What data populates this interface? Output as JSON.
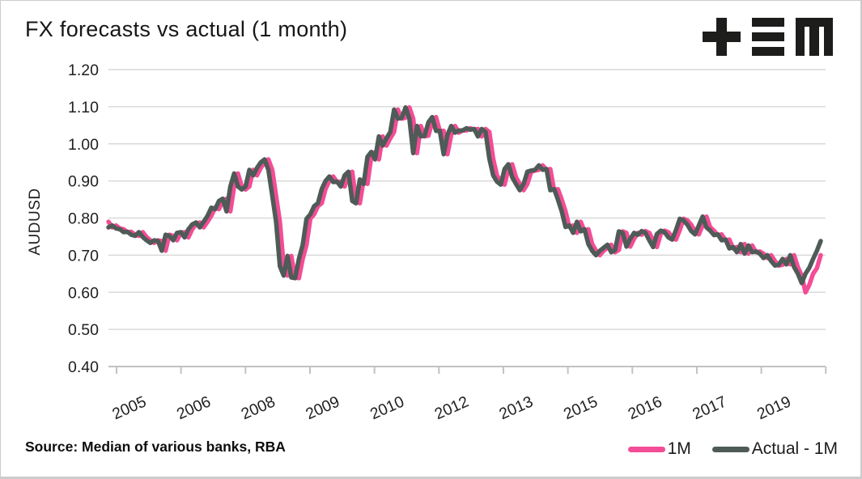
{
  "header": {
    "title": "FX forecasts vs actual (1 month)",
    "logo_glyphs": [
      "plus-icon",
      "triple-bar-icon",
      "squared-m-icon"
    ],
    "logo_color": "#1d1d1b"
  },
  "footer": {
    "source": "Source: Median of various banks, RBA"
  },
  "chart_style": {
    "grid_color": "#d9d9d9",
    "axis_color": "#c2c2c2",
    "text_color": "#1f1f1f",
    "background": "#ffffff",
    "border_color": "#cccccc"
  },
  "chart_data": {
    "type": "line",
    "title": "FX forecasts vs actual (1 month)",
    "xlabel": "",
    "ylabel": "AUDUSD",
    "ylim": [
      0.4,
      1.2
    ],
    "y_ticks": [
      "1.20",
      "1.10",
      "1.00",
      "0.90",
      "0.80",
      "0.70",
      "0.60",
      "0.50",
      "0.40"
    ],
    "x_tick_labels": [
      "2005",
      "2006",
      "2008",
      "2009",
      "2010",
      "2012",
      "2013",
      "2015",
      "2016",
      "2017",
      "2019"
    ],
    "x_start": "2005-01",
    "x_end": "2020-08",
    "frequency": "monthly",
    "grid": "horizontal",
    "legend_position": "bottom-right",
    "series": [
      {
        "name": "1M",
        "color": "#f44c96",
        "values": [
          0.79,
          0.775,
          0.78,
          0.772,
          0.77,
          0.762,
          0.763,
          0.755,
          0.752,
          0.762,
          0.749,
          0.74,
          0.733,
          0.74,
          0.738,
          0.712,
          0.755,
          0.752,
          0.74,
          0.76,
          0.762,
          0.748,
          0.77,
          0.783,
          0.788,
          0.775,
          0.79,
          0.806,
          0.828,
          0.824,
          0.846,
          0.852,
          0.818,
          0.885,
          0.92,
          0.885,
          0.877,
          0.885,
          0.93,
          0.915,
          0.935,
          0.95,
          0.958,
          0.93,
          0.86,
          0.79,
          0.67,
          0.645,
          0.698,
          0.64,
          0.638,
          0.69,
          0.728,
          0.798,
          0.81,
          0.832,
          0.84,
          0.878,
          0.9,
          0.912,
          0.897,
          0.898,
          0.885,
          0.915,
          0.925,
          0.846,
          0.84,
          0.904,
          0.892,
          0.965,
          0.978,
          0.958,
          1.02,
          0.995,
          1.015,
          1.032,
          1.092,
          1.068,
          1.07,
          1.098,
          1.068,
          0.975,
          1.048,
          1.02,
          1.022,
          1.058,
          1.072,
          1.035,
          1.035,
          0.972,
          1.024,
          1.048,
          1.03,
          1.036,
          1.036,
          1.042,
          1.038,
          1.04,
          1.02,
          1.04,
          1.032,
          0.96,
          0.915,
          0.898,
          0.89,
          0.932,
          0.945,
          0.91,
          0.892,
          0.875,
          0.892,
          0.925,
          0.928,
          0.93,
          0.942,
          0.93,
          0.932,
          0.875,
          0.878,
          0.85,
          0.818,
          0.776,
          0.78,
          0.76,
          0.79,
          0.764,
          0.77,
          0.73,
          0.712,
          0.7,
          0.712,
          0.72,
          0.728,
          0.708,
          0.714,
          0.764,
          0.76,
          0.723,
          0.744,
          0.76,
          0.755,
          0.765,
          0.76,
          0.74,
          0.722,
          0.757,
          0.766,
          0.762,
          0.748,
          0.742,
          0.768,
          0.798,
          0.794,
          0.782,
          0.765,
          0.756,
          0.78,
          0.804,
          0.775,
          0.766,
          0.754,
          0.756,
          0.74,
          0.742,
          0.718,
          0.722,
          0.708,
          0.73,
          0.704,
          0.726,
          0.708,
          0.71,
          0.704,
          0.692,
          0.7,
          0.684,
          0.672,
          0.674,
          0.69,
          0.675,
          0.7,
          0.668,
          0.645,
          0.6,
          0.62,
          0.65,
          0.665,
          0.7
        ]
      },
      {
        "name": "Actual - 1M",
        "color": "#4e5b57",
        "values": [
          0.775,
          0.78,
          0.772,
          0.77,
          0.762,
          0.763,
          0.755,
          0.752,
          0.762,
          0.749,
          0.74,
          0.733,
          0.74,
          0.738,
          0.712,
          0.755,
          0.752,
          0.74,
          0.76,
          0.762,
          0.748,
          0.77,
          0.783,
          0.788,
          0.775,
          0.79,
          0.806,
          0.828,
          0.824,
          0.846,
          0.852,
          0.818,
          0.885,
          0.92,
          0.885,
          0.877,
          0.885,
          0.93,
          0.915,
          0.935,
          0.95,
          0.958,
          0.93,
          0.86,
          0.79,
          0.67,
          0.645,
          0.698,
          0.64,
          0.638,
          0.69,
          0.728,
          0.798,
          0.81,
          0.832,
          0.84,
          0.878,
          0.9,
          0.912,
          0.897,
          0.898,
          0.885,
          0.915,
          0.925,
          0.846,
          0.84,
          0.904,
          0.892,
          0.965,
          0.978,
          0.958,
          1.02,
          0.995,
          1.015,
          1.032,
          1.092,
          1.068,
          1.07,
          1.098,
          1.068,
          0.975,
          1.048,
          1.02,
          1.022,
          1.058,
          1.072,
          1.035,
          1.035,
          0.972,
          1.024,
          1.048,
          1.03,
          1.036,
          1.036,
          1.042,
          1.038,
          1.04,
          1.02,
          1.04,
          1.032,
          0.96,
          0.915,
          0.898,
          0.89,
          0.932,
          0.945,
          0.91,
          0.892,
          0.875,
          0.892,
          0.925,
          0.928,
          0.93,
          0.942,
          0.93,
          0.932,
          0.875,
          0.878,
          0.85,
          0.818,
          0.776,
          0.78,
          0.76,
          0.79,
          0.764,
          0.77,
          0.73,
          0.712,
          0.7,
          0.712,
          0.72,
          0.728,
          0.708,
          0.714,
          0.764,
          0.76,
          0.723,
          0.744,
          0.76,
          0.755,
          0.765,
          0.76,
          0.74,
          0.722,
          0.757,
          0.766,
          0.762,
          0.748,
          0.742,
          0.768,
          0.798,
          0.794,
          0.782,
          0.765,
          0.756,
          0.78,
          0.804,
          0.775,
          0.766,
          0.754,
          0.756,
          0.74,
          0.742,
          0.718,
          0.722,
          0.708,
          0.73,
          0.704,
          0.726,
          0.708,
          0.71,
          0.704,
          0.692,
          0.7,
          0.684,
          0.672,
          0.674,
          0.69,
          0.675,
          0.7,
          0.668,
          0.65,
          0.625,
          0.65,
          0.666,
          0.69,
          0.712,
          0.738
        ]
      }
    ]
  }
}
